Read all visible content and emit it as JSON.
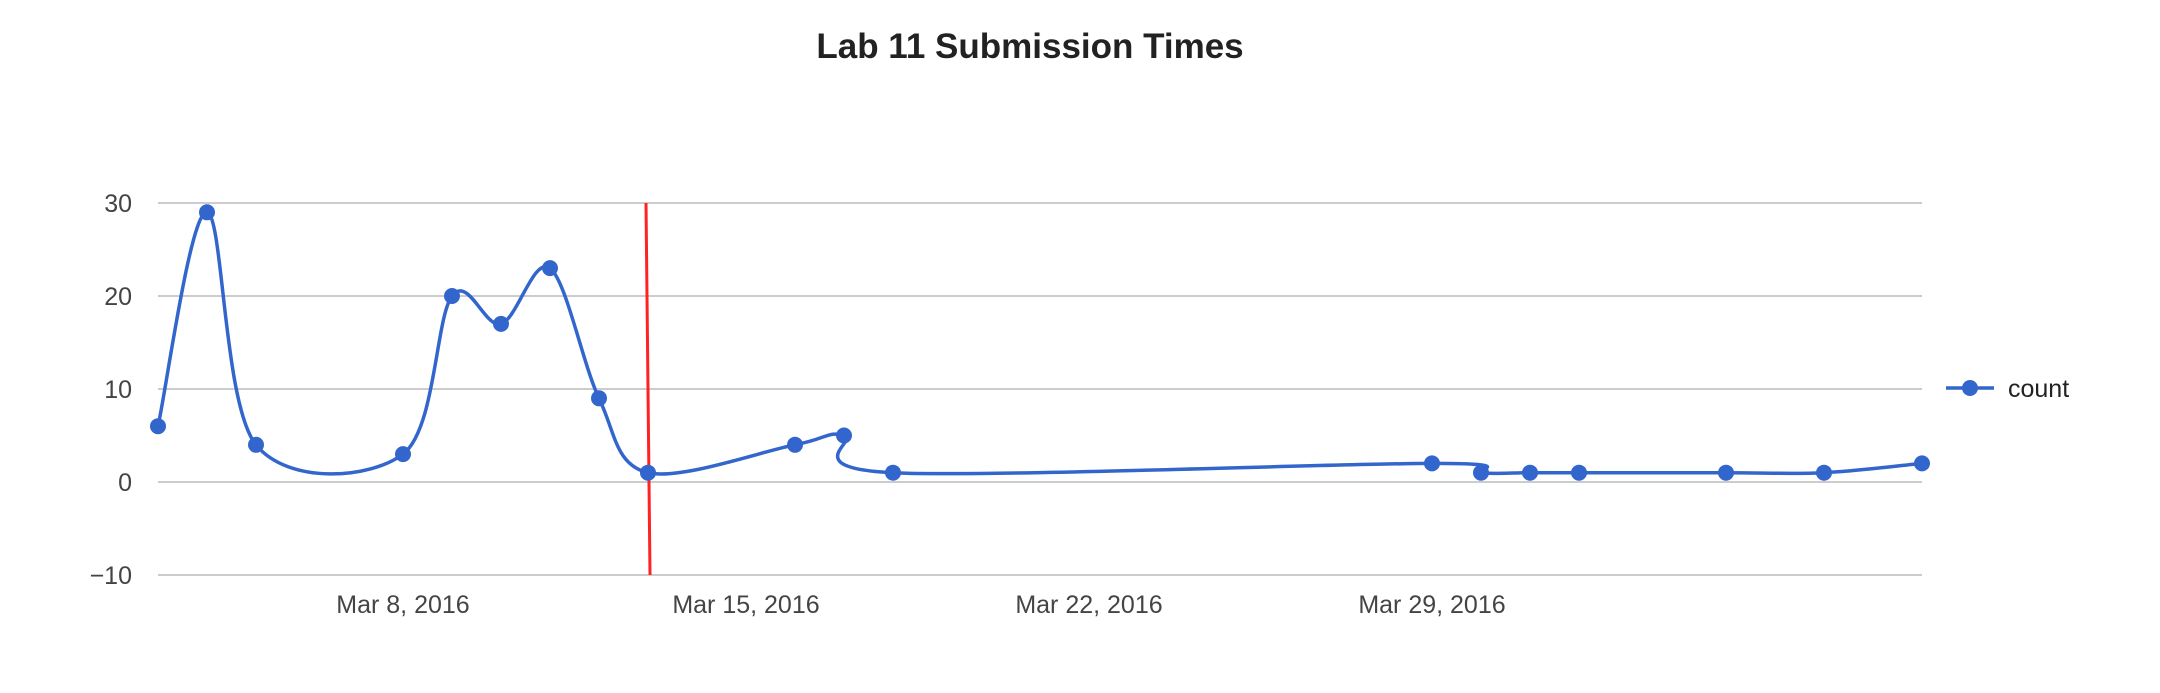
{
  "chart_data": {
    "type": "line",
    "title": "Lab 11 Submission Times",
    "xlabel": "",
    "ylabel": "",
    "x_type": "date",
    "x_range": [
      "2016-03-03",
      "2016-04-08"
    ],
    "ylim": [
      -10,
      30
    ],
    "y_ticks": [
      30,
      20,
      10,
      0,
      -10
    ],
    "x_ticks": [
      {
        "date": "2016-03-08",
        "label": "Mar 8, 2016"
      },
      {
        "date": "2016-03-15",
        "label": "Mar 15, 2016"
      },
      {
        "date": "2016-03-22",
        "label": "Mar 22, 2016"
      },
      {
        "date": "2016-03-29",
        "label": "Mar 29, 2016"
      }
    ],
    "grid": true,
    "smooth": true,
    "legend": {
      "position": "right"
    },
    "series": [
      {
        "name": "count",
        "color": "#3366cc",
        "points": [
          {
            "x": "2016-03-03",
            "y": 6
          },
          {
            "x": "2016-03-04",
            "y": 29
          },
          {
            "x": "2016-03-05",
            "y": 4
          },
          {
            "x": "2016-03-08",
            "y": 3
          },
          {
            "x": "2016-03-09",
            "y": 20
          },
          {
            "x": "2016-03-10",
            "y": 17
          },
          {
            "x": "2016-03-11",
            "y": 23
          },
          {
            "x": "2016-03-12",
            "y": 9
          },
          {
            "x": "2016-03-13",
            "y": 1
          },
          {
            "x": "2016-03-16",
            "y": 4
          },
          {
            "x": "2016-03-17",
            "y": 5
          },
          {
            "x": "2016-03-18",
            "y": 1
          },
          {
            "x": "2016-03-29",
            "y": 2
          },
          {
            "x": "2016-03-30",
            "y": 1
          },
          {
            "x": "2016-03-31",
            "y": 1
          },
          {
            "x": "2016-04-01",
            "y": 1
          },
          {
            "x": "2016-04-04",
            "y": 1
          },
          {
            "x": "2016-04-06",
            "y": 1
          },
          {
            "x": "2016-04-08",
            "y": 2
          }
        ]
      }
    ],
    "annotations": [
      {
        "type": "vertical-line",
        "x": "2016-03-13",
        "color": "#ff2222"
      }
    ]
  }
}
